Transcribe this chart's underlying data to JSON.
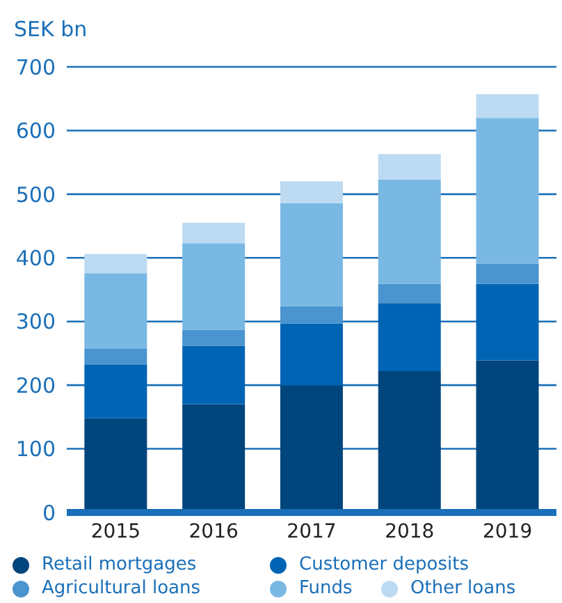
{
  "chart_data": {
    "type": "bar",
    "stacked": true,
    "ylabel": "SEK bn",
    "categories": [
      "2015",
      "2016",
      "2017",
      "2018",
      "2019"
    ],
    "series": [
      {
        "name": "Retail mortgages",
        "color": "#00457c",
        "values": [
          148,
          170,
          200,
          222,
          239
        ]
      },
      {
        "name": "Customer deposits",
        "color": "#0064b4",
        "values": [
          84,
          92,
          97,
          107,
          120
        ]
      },
      {
        "name": "Agricultural loans",
        "color": "#4a94d0",
        "values": [
          25,
          25,
          27,
          30,
          32
        ]
      },
      {
        "name": "Funds",
        "color": "#7ab8e4",
        "values": [
          119,
          136,
          162,
          164,
          229
        ]
      },
      {
        "name": "Other loans",
        "color": "#bcdaf2",
        "values": [
          30,
          32,
          34,
          40,
          37
        ]
      }
    ],
    "ylim": [
      0,
      700
    ],
    "yticks": [
      0,
      100,
      200,
      300,
      400,
      500,
      600,
      700
    ],
    "grid": "y",
    "legend": "bottom"
  }
}
